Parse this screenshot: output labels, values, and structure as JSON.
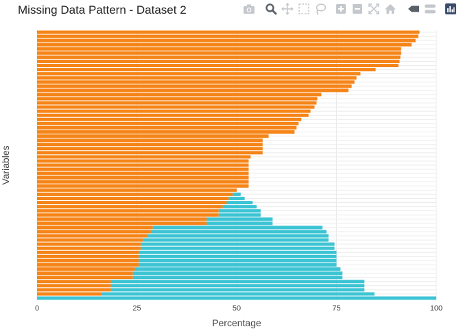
{
  "title": "Missing Data Pattern - Dataset 2",
  "modebar": {
    "buttons": [
      {
        "icon": "camera-icon",
        "name": "download-plot-button"
      },
      {
        "icon": "zoom-icon",
        "name": "zoom-button"
      },
      {
        "icon": "pan-icon",
        "name": "pan-button"
      },
      {
        "icon": "box-select-icon",
        "name": "box-select-button"
      },
      {
        "icon": "lasso-select-icon",
        "name": "lasso-select-button"
      },
      {
        "icon": "zoom-in-icon",
        "name": "zoom-in-button"
      },
      {
        "icon": "zoom-out-icon",
        "name": "zoom-out-button"
      },
      {
        "icon": "autoscale-icon",
        "name": "autoscale-button"
      },
      {
        "icon": "home-icon",
        "name": "reset-axes-button"
      },
      {
        "icon": "spike-lines-icon",
        "name": "toggle-spike-lines-button"
      },
      {
        "icon": "compare-hover-icon",
        "name": "compare-hover-button"
      },
      {
        "icon": "plotly-logo-icon",
        "name": "plotly-logo"
      }
    ]
  },
  "chart_data": {
    "type": "bar",
    "orientation": "horizontal",
    "barmode": "stack",
    "title": "Missing Data Pattern - Dataset 2",
    "xlabel": "Percentage",
    "ylabel": "Variables",
    "xlim": [
      0,
      100
    ],
    "xticks": [
      0,
      25,
      50,
      75,
      100
    ],
    "grid": true,
    "legend": "none",
    "n_variables": 65,
    "colors": {
      "missing": "#f58518",
      "missing_dark": "#e88a2e",
      "present": "#3cc4d4"
    },
    "series": [
      {
        "values": [
          95.8,
          95.5,
          94.8,
          93.8,
          91.2,
          91.2,
          91.0,
          90.8,
          90.5,
          84.8,
          81.0,
          80.0,
          79.5,
          78.8,
          78.0,
          71.2,
          70.2,
          70.0,
          69.5,
          68.5,
          68.0,
          66.2,
          65.5,
          65.0,
          64.5,
          58.0,
          56.5,
          56.5,
          56.5,
          56.5,
          53.5,
          53.0,
          53.0,
          53.0,
          53.0,
          53.0,
          53.0,
          53.0,
          50.0,
          49.0,
          48.0,
          47.5,
          46.5,
          45.5,
          45.5,
          42.5,
          42.5,
          29.0,
          28.5,
          27.5,
          26.5,
          26.0,
          26.0,
          25.5,
          25.5,
          25.5,
          25.5,
          24.5,
          24.0,
          24.0,
          18.5,
          18.5,
          18.5,
          16.0,
          0.0
        ]
      },
      {
        "values": [
          0,
          0,
          0,
          0,
          0,
          0,
          0,
          0,
          0,
          0,
          0,
          0,
          0,
          0,
          0,
          0,
          0,
          0,
          0,
          0,
          0,
          0,
          0,
          0,
          0,
          0,
          0,
          0,
          0,
          0,
          0,
          0,
          0,
          0,
          0,
          0,
          0,
          0,
          0,
          2.0,
          4.0,
          6.5,
          8.5,
          10.5,
          10.5,
          16.5,
          16.5,
          42.5,
          44.0,
          45.5,
          46.5,
          48.5,
          48.5,
          49.5,
          49.5,
          49.5,
          49.5,
          51.5,
          52.5,
          52.5,
          63.5,
          63.5,
          63.5,
          68.5,
          100.0
        ]
      }
    ]
  }
}
